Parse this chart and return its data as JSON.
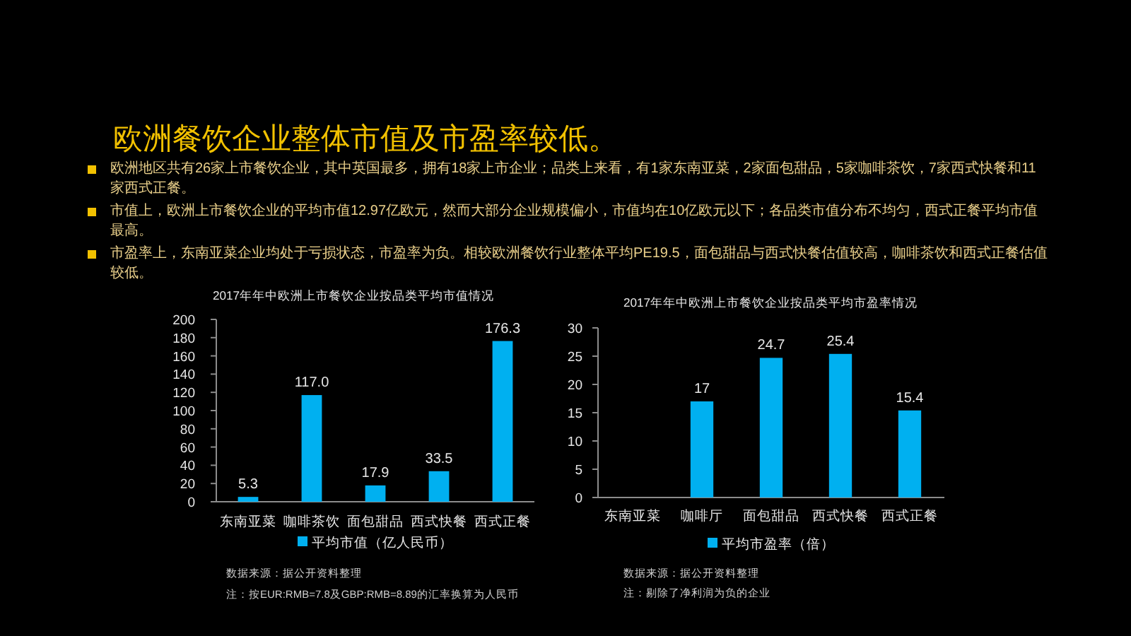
{
  "chart_data": [
    {
      "type": "other",
      "title": "欧洲餐饮企业整体市值及市盈率较低。",
      "annotations": [
        "欧洲地区共有26家上市餐饮企业，其中英国最多，拥有18家上市企业；品类上来看，有1家东南亚菜，2家面包甜品，5家咖啡茶饮，7家西式快餐和11家西式正餐。",
        "市值上，欧洲上市餐饮企业的平均市值12.97亿欧元，然而大部分企业规模偏小，市值均在10亿欧元以下；各品类市值分布不均匀，西式正餐平均市值最高。",
        "市盈率上，东南亚菜企业均处于亏损状态，市盈率为负。相较欧洲餐饮行业整体平均PE19.5，面包甜品与西式快餐估值较高，咖啡茶饮和西式正餐估值较低。"
      ]
    },
    {
      "type": "bar",
      "title": "2017年年中欧洲上市餐饮企业按品类平均市值情况",
      "categories": [
        "东南亚菜",
        "咖啡茶饮",
        "面包甜品",
        "西式快餐",
        "西式正餐"
      ],
      "series": [
        {
          "name": "平均市值（亿人民币）",
          "color": "#00b0f0",
          "values": [
            5.3,
            117.0,
            17.9,
            33.5,
            176.3
          ],
          "value_labels": [
            "5.3",
            "117.0",
            "17.9",
            "33.5",
            "176.3"
          ]
        }
      ],
      "ylim": [
        0,
        200
      ],
      "yticks": [
        0,
        20,
        40,
        60,
        80,
        100,
        120,
        140,
        160,
        180,
        200
      ],
      "legend": "bottom",
      "annotations": [
        "数据来源：据公开资料整理",
        "注：按EUR:RMB=7.8及GBP:RMB=8.89的汇率换算为人民币"
      ]
    },
    {
      "type": "bar",
      "title": "2017年年中欧洲上市餐饮企业按品类平均市盈率情况",
      "categories": [
        "东南亚菜",
        "咖啡厅",
        "面包甜品",
        "西式快餐",
        "西式正餐"
      ],
      "series": [
        {
          "name": "平均市盈率（倍）",
          "color": "#00b0f0",
          "values": [
            null,
            17,
            24.7,
            25.4,
            15.4
          ]
        }
      ],
      "ylim": [
        0,
        30
      ],
      "yticks": [
        0,
        5,
        10,
        15,
        20,
        25,
        30
      ],
      "legend": "bottom",
      "data_labels": true,
      "annotations": [
        "数据来源：据公开资料整理",
        "注：剔除了净利润为负的企业"
      ]
    }
  ]
}
